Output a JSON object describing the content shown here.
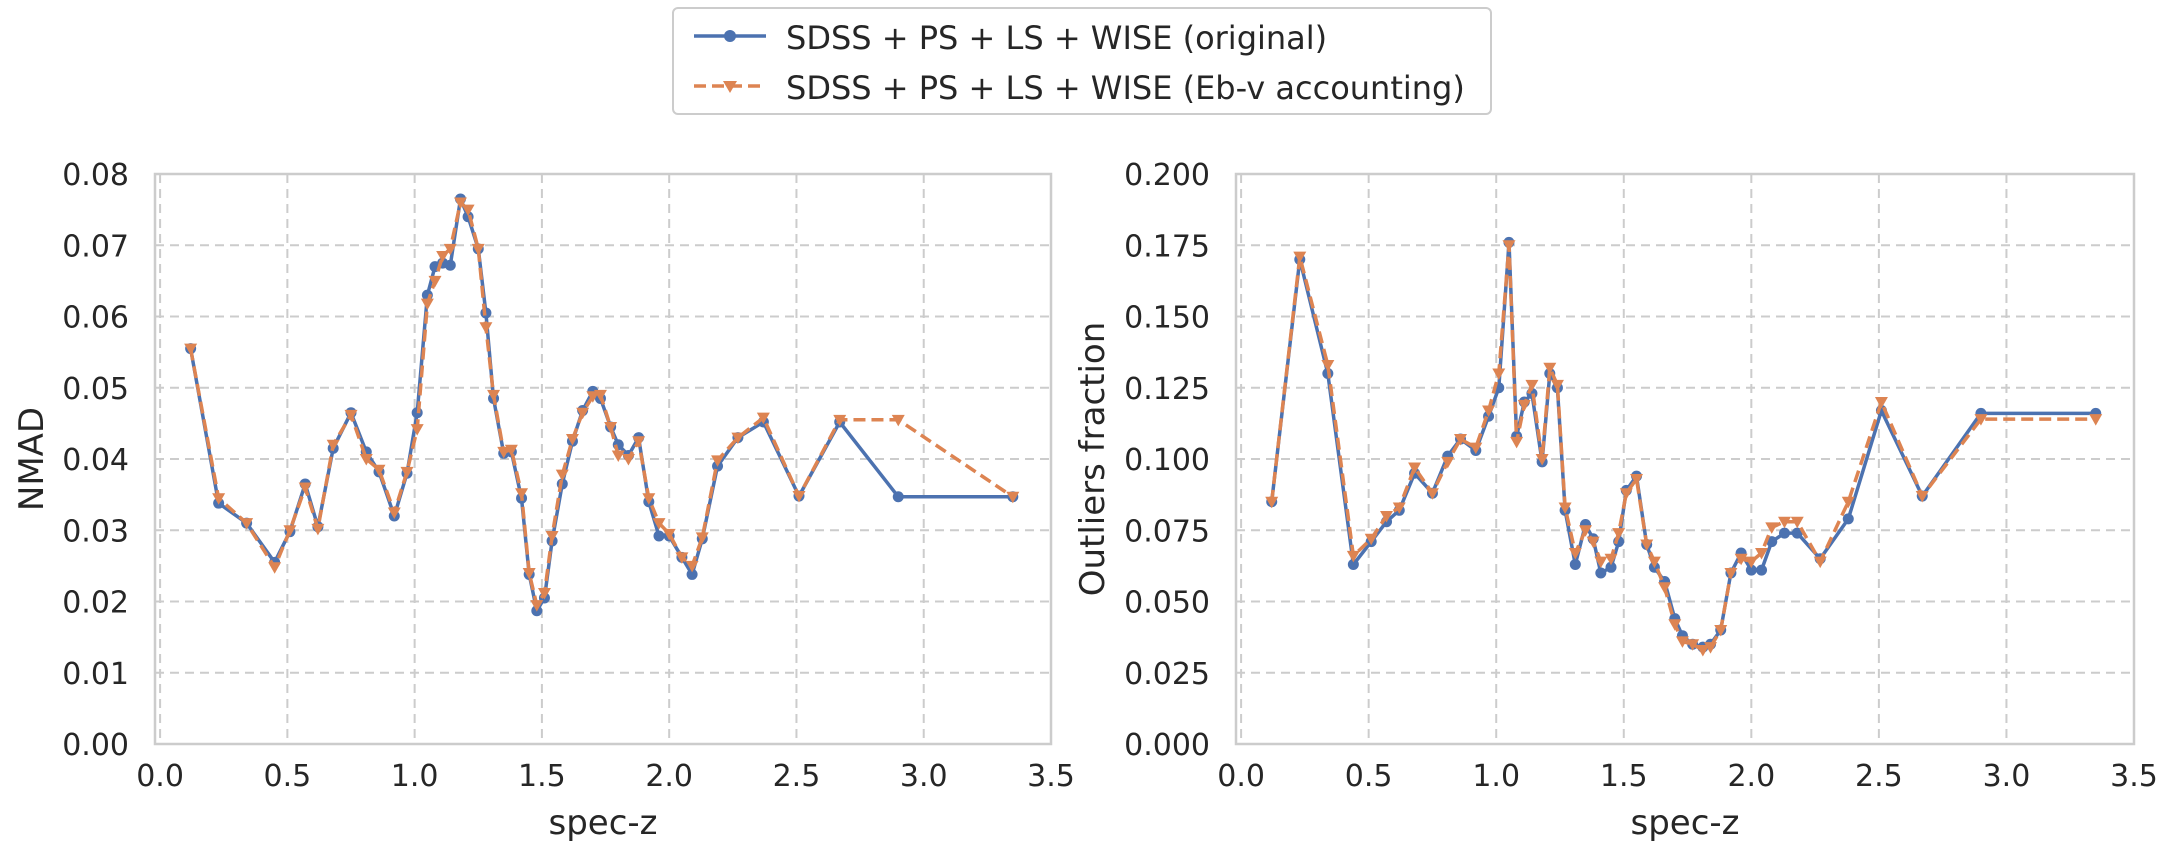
{
  "legend": {
    "items": [
      {
        "label": "SDSS + PS + LS + WISE (original)",
        "color": "#4C72B0",
        "marker": "circle",
        "linestyle": "solid"
      },
      {
        "label": "SDSS + PS + LS + WISE (Eb-v accounting)",
        "color": "#DD8452",
        "marker": "triangle-down",
        "linestyle": "dashed"
      }
    ]
  },
  "chart_data": [
    {
      "type": "line",
      "xlabel": "spec-z",
      "ylabel": "NMAD",
      "xlim": [
        -0.02,
        3.5
      ],
      "ylim": [
        0,
        0.08
      ],
      "xticks": [
        "0.0",
        "0.5",
        "1.0",
        "1.5",
        "2.0",
        "2.5",
        "3.0",
        "3.5"
      ],
      "yticks": [
        "0.00",
        "0.01",
        "0.02",
        "0.03",
        "0.04",
        "0.05",
        "0.06",
        "0.07",
        "0.08"
      ],
      "grid": true,
      "series": [
        {
          "name": "SDSS + PS + LS + WISE (original)",
          "x": [
            0.12,
            0.23,
            0.34,
            0.45,
            0.51,
            0.57,
            0.62,
            0.68,
            0.75,
            0.81,
            0.86,
            0.92,
            0.97,
            1.01,
            1.05,
            1.08,
            1.11,
            1.14,
            1.18,
            1.21,
            1.25,
            1.28,
            1.31,
            1.35,
            1.38,
            1.42,
            1.45,
            1.48,
            1.51,
            1.54,
            1.58,
            1.62,
            1.66,
            1.7,
            1.73,
            1.77,
            1.8,
            1.84,
            1.88,
            1.92,
            1.96,
            2.0,
            2.05,
            2.09,
            2.13,
            2.19,
            2.27,
            2.37,
            2.51,
            2.67,
            2.9,
            3.35
          ],
          "y": [
            0.0555,
            0.0338,
            0.031,
            0.0255,
            0.0298,
            0.0365,
            0.0305,
            0.0415,
            0.0465,
            0.041,
            0.0382,
            0.032,
            0.038,
            0.0465,
            0.063,
            0.067,
            0.0675,
            0.0672,
            0.0765,
            0.074,
            0.0695,
            0.0605,
            0.0485,
            0.0408,
            0.041,
            0.0345,
            0.0238,
            0.0187,
            0.0205,
            0.0285,
            0.0365,
            0.0425,
            0.0468,
            0.0495,
            0.0485,
            0.0445,
            0.042,
            0.0405,
            0.043,
            0.034,
            0.0292,
            0.0292,
            0.0262,
            0.0238,
            0.0288,
            0.039,
            0.043,
            0.0452,
            0.0348,
            0.0452,
            0.0347,
            0.0347
          ]
        },
        {
          "name": "SDSS + PS + LS + WISE (Eb-v accounting)",
          "x": [
            0.12,
            0.23,
            0.34,
            0.45,
            0.51,
            0.57,
            0.62,
            0.68,
            0.75,
            0.81,
            0.86,
            0.92,
            0.97,
            1.01,
            1.05,
            1.08,
            1.11,
            1.14,
            1.18,
            1.21,
            1.25,
            1.28,
            1.31,
            1.35,
            1.38,
            1.42,
            1.45,
            1.48,
            1.51,
            1.54,
            1.58,
            1.62,
            1.66,
            1.7,
            1.73,
            1.77,
            1.8,
            1.84,
            1.88,
            1.92,
            1.96,
            2.0,
            2.05,
            2.09,
            2.13,
            2.19,
            2.27,
            2.37,
            2.51,
            2.67,
            2.9,
            3.35
          ],
          "y": [
            0.0555,
            0.0345,
            0.031,
            0.0248,
            0.03,
            0.036,
            0.0302,
            0.042,
            0.0462,
            0.04,
            0.0385,
            0.0325,
            0.0382,
            0.0442,
            0.0618,
            0.065,
            0.0685,
            0.0695,
            0.076,
            0.075,
            0.0695,
            0.0585,
            0.049,
            0.041,
            0.0413,
            0.0352,
            0.024,
            0.0195,
            0.0212,
            0.0292,
            0.0378,
            0.0428,
            0.0465,
            0.0488,
            0.049,
            0.0445,
            0.0405,
            0.04,
            0.0425,
            0.0345,
            0.031,
            0.0295,
            0.0262,
            0.025,
            0.029,
            0.0398,
            0.043,
            0.0458,
            0.0348,
            0.0455,
            0.0455,
            0.0347
          ]
        }
      ]
    },
    {
      "type": "line",
      "xlabel": "spec-z",
      "ylabel": "Outliers fraction",
      "xlim": [
        -0.02,
        3.5
      ],
      "ylim": [
        0,
        0.2
      ],
      "xticks": [
        "0.0",
        "0.5",
        "1.0",
        "1.5",
        "2.0",
        "2.5",
        "3.0",
        "3.5"
      ],
      "yticks": [
        "0.000",
        "0.025",
        "0.050",
        "0.075",
        "0.100",
        "0.125",
        "0.150",
        "0.175",
        "0.200"
      ],
      "grid": true,
      "series": [
        {
          "name": "SDSS + PS + LS + WISE (original)",
          "x": [
            0.12,
            0.23,
            0.34,
            0.44,
            0.51,
            0.57,
            0.62,
            0.68,
            0.75,
            0.81,
            0.86,
            0.92,
            0.97,
            1.01,
            1.05,
            1.08,
            1.11,
            1.14,
            1.18,
            1.21,
            1.24,
            1.27,
            1.31,
            1.35,
            1.38,
            1.41,
            1.45,
            1.48,
            1.51,
            1.55,
            1.59,
            1.62,
            1.66,
            1.7,
            1.73,
            1.77,
            1.81,
            1.84,
            1.88,
            1.92,
            1.96,
            2.0,
            2.04,
            2.08,
            2.13,
            2.18,
            2.27,
            2.38,
            2.51,
            2.67,
            2.9,
            3.35
          ],
          "y": [
            0.085,
            0.17,
            0.13,
            0.063,
            0.071,
            0.078,
            0.082,
            0.095,
            0.088,
            0.101,
            0.107,
            0.103,
            0.115,
            0.125,
            0.176,
            0.108,
            0.12,
            0.123,
            0.099,
            0.13,
            0.125,
            0.082,
            0.063,
            0.077,
            0.072,
            0.06,
            0.062,
            0.071,
            0.089,
            0.094,
            0.07,
            0.062,
            0.057,
            0.044,
            0.038,
            0.035,
            0.034,
            0.035,
            0.04,
            0.06,
            0.067,
            0.061,
            0.061,
            0.071,
            0.074,
            0.074,
            0.065,
            0.079,
            0.117,
            0.087,
            0.116,
            0.116
          ]
        },
        {
          "name": "SDSS + PS + LS + WISE (Eb-v accounting)",
          "x": [
            0.12,
            0.23,
            0.34,
            0.44,
            0.51,
            0.57,
            0.62,
            0.68,
            0.75,
            0.81,
            0.86,
            0.92,
            0.97,
            1.01,
            1.05,
            1.08,
            1.11,
            1.14,
            1.18,
            1.21,
            1.24,
            1.27,
            1.31,
            1.35,
            1.38,
            1.41,
            1.45,
            1.48,
            1.51,
            1.55,
            1.59,
            1.62,
            1.66,
            1.7,
            1.73,
            1.77,
            1.81,
            1.84,
            1.88,
            1.92,
            1.96,
            2.0,
            2.04,
            2.08,
            2.13,
            2.18,
            2.27,
            2.38,
            2.51,
            2.67,
            2.9,
            3.35
          ],
          "y": [
            0.085,
            0.171,
            0.133,
            0.066,
            0.072,
            0.08,
            0.083,
            0.097,
            0.088,
            0.099,
            0.107,
            0.104,
            0.117,
            0.13,
            0.175,
            0.106,
            0.119,
            0.126,
            0.1,
            0.132,
            0.126,
            0.083,
            0.067,
            0.075,
            0.071,
            0.064,
            0.065,
            0.074,
            0.088,
            0.093,
            0.07,
            0.064,
            0.055,
            0.042,
            0.036,
            0.035,
            0.033,
            0.034,
            0.04,
            0.06,
            0.065,
            0.064,
            0.067,
            0.076,
            0.078,
            0.078,
            0.064,
            0.085,
            0.12,
            0.087,
            0.114,
            0.114
          ]
        }
      ]
    }
  ]
}
